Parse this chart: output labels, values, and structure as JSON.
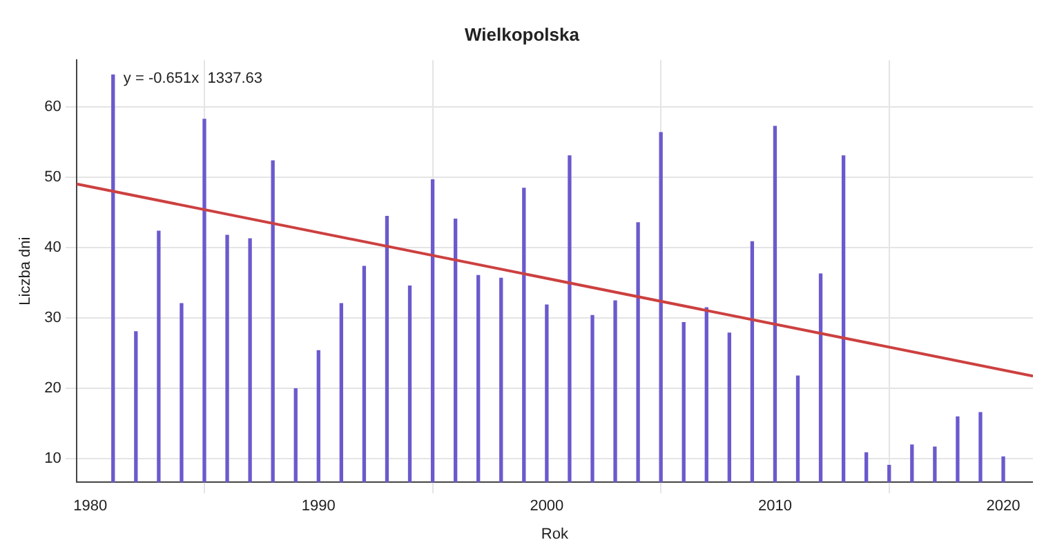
{
  "chart_data": {
    "type": "bar",
    "title": "Wielkopolska",
    "xlabel": "Rok",
    "ylabel": "Liczba dni",
    "x": [
      1981,
      1982,
      1983,
      1984,
      1985,
      1986,
      1987,
      1988,
      1989,
      1990,
      1991,
      1992,
      1993,
      1994,
      1995,
      1996,
      1997,
      1998,
      1999,
      2000,
      2001,
      2002,
      2003,
      2004,
      2005,
      2006,
      2007,
      2008,
      2009,
      2010,
      2011,
      2012,
      2013,
      2014,
      2015,
      2016,
      2017,
      2018,
      2019,
      2020
    ],
    "series": [
      {
        "color": "#6a5acd",
        "values": [
          64.5,
          28,
          42.3,
          32,
          58.2,
          41.7,
          41.2,
          52.3,
          19.9,
          25.3,
          32,
          37.3,
          44.4,
          34.5,
          49.6,
          44,
          36,
          35.6,
          48.4,
          31.8,
          53,
          30.3,
          32.4,
          43.5,
          56.3,
          29.3,
          31.4,
          27.8,
          40.8,
          57.2,
          21.7,
          36.2,
          53,
          10.8,
          9,
          11.9,
          11.6,
          15.9,
          16.5,
          10.2
        ]
      },
      {
        "type": "line",
        "color": "#cd4040",
        "x": [
          1979.4,
          2021.3
        ],
        "values": [
          49.0,
          21.7
        ]
      }
    ],
    "annotations": [
      "y = -0.651x  1337.63"
    ],
    "xlim": [
      1979.4,
      2021.3
    ],
    "xticks": [
      1980,
      1990,
      2000,
      2010,
      2020
    ],
    "ylim": [
      6.6,
      66.6
    ],
    "yticks": [
      10,
      20,
      30,
      40,
      50,
      60
    ],
    "grid": true,
    "legend": false
  }
}
